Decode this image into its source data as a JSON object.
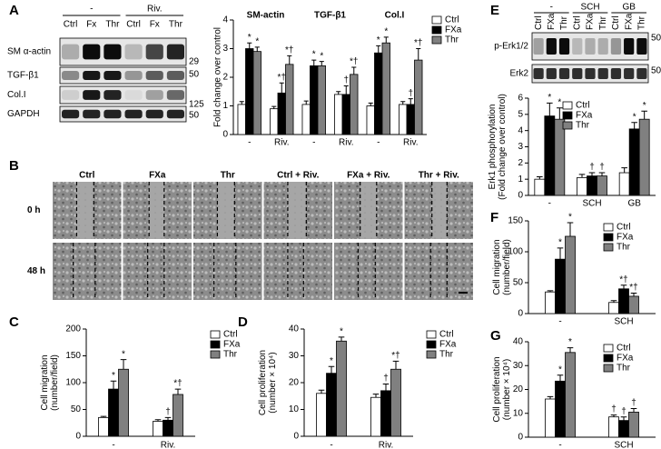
{
  "blot_a": {
    "panel": "A",
    "groups": [
      "-",
      "Riv."
    ],
    "lanes": [
      "Ctrl",
      "Fx",
      "Thr",
      "Ctrl",
      "Fx",
      "Thr"
    ],
    "rows": [
      "SM α-actin",
      "TGF-β1",
      "Col.I",
      "GAPDH"
    ],
    "markers": [
      "29",
      "50",
      "125",
      "50"
    ]
  },
  "micrographs": {
    "panel": "B",
    "columns": [
      "Ctrl",
      "FXa",
      "Thr",
      "Ctrl + Riv.",
      "FXa + Riv.",
      "Thr + Riv."
    ],
    "rows": [
      "0 h",
      "48 h"
    ]
  },
  "blot_e": {
    "panel": "E",
    "groups": [
      "-",
      "SCH",
      "GB"
    ],
    "lanes": [
      "Ctrl",
      "FXa",
      "Thr",
      "Ctrl",
      "FXa",
      "Thr",
      "Ctrl",
      "FXa",
      "Thr"
    ],
    "rows": [
      "p-Erk1/2",
      "Erk2"
    ],
    "markers": [
      "50",
      "50"
    ]
  },
  "chart_data": [
    {
      "type": "bar",
      "ylabel": [
        "Fold change over control"
      ],
      "groups": [
        "SM-actin",
        "TGF-β1",
        "Col.I"
      ],
      "categories": [
        "-",
        "Riv.",
        "-",
        "Riv.",
        "-",
        "Riv."
      ],
      "ylim": [
        0,
        4
      ],
      "yticks": [
        0,
        1,
        2,
        3,
        4
      ],
      "series": [
        {
          "name": "Ctrl",
          "color": "#ffffff",
          "values": [
            1.05,
            0.9,
            1.05,
            1.4,
            1.0,
            1.05
          ],
          "errors": [
            0.1,
            0.08,
            0.12,
            0.1,
            0.1,
            0.1
          ],
          "markers": [
            null,
            null,
            null,
            null,
            null,
            null
          ]
        },
        {
          "name": "FXa",
          "color": "#000000",
          "values": [
            3.0,
            1.45,
            2.4,
            1.4,
            2.85,
            1.05
          ],
          "errors": [
            0.2,
            0.35,
            0.2,
            0.3,
            0.25,
            0.2
          ],
          "markers": [
            "*",
            "*†",
            "*",
            "†",
            "*",
            "†"
          ]
        },
        {
          "name": "Thr",
          "color": "#808080",
          "values": [
            2.9,
            2.45,
            2.4,
            2.1,
            3.2,
            2.6
          ],
          "errors": [
            0.15,
            0.3,
            0.15,
            0.25,
            0.2,
            0.4
          ],
          "markers": [
            "*",
            "*†",
            "*",
            "*†",
            "*",
            "*†"
          ]
        }
      ]
    },
    {
      "type": "bar",
      "panel": "C",
      "ylabel": [
        "Cell migration",
        "(number/field)"
      ],
      "categories": [
        "-",
        "Riv."
      ],
      "ylim": [
        0,
        200
      ],
      "yticks": [
        0,
        50,
        100,
        150,
        200
      ],
      "series": [
        {
          "name": "Ctrl",
          "color": "#ffffff",
          "values": [
            35,
            28
          ],
          "errors": [
            2,
            3
          ],
          "markers": [
            null,
            null
          ]
        },
        {
          "name": "FXa",
          "color": "#000000",
          "values": [
            88,
            30
          ],
          "errors": [
            15,
            5
          ],
          "markers": [
            "*",
            "†"
          ]
        },
        {
          "name": "Thr",
          "color": "#808080",
          "values": [
            125,
            78
          ],
          "errors": [
            18,
            10
          ],
          "markers": [
            "*",
            "*†"
          ]
        }
      ]
    },
    {
      "type": "bar",
      "panel": "D",
      "ylabel": [
        "Cell proliferation",
        "(number × 10⁴)"
      ],
      "categories": [
        "-",
        "Riv."
      ],
      "ylim": [
        0,
        40
      ],
      "yticks": [
        0,
        10,
        20,
        30,
        40
      ],
      "series": [
        {
          "name": "Ctrl",
          "color": "#ffffff",
          "values": [
            16,
            14.5
          ],
          "errors": [
            1.2,
            1.2
          ],
          "markers": [
            null,
            null
          ]
        },
        {
          "name": "FXa",
          "color": "#000000",
          "values": [
            23.5,
            17
          ],
          "errors": [
            2.5,
            2.5
          ],
          "markers": [
            "*",
            "†"
          ]
        },
        {
          "name": "Thr",
          "color": "#808080",
          "values": [
            35.5,
            25
          ],
          "errors": [
            1.5,
            3
          ],
          "markers": [
            "*",
            "*†"
          ]
        }
      ]
    },
    {
      "type": "bar",
      "ylabel": [
        "Erk1 phosphorylation",
        "(Fold change over control)"
      ],
      "categories": [
        "-",
        "SCH",
        "GB"
      ],
      "ylim": [
        0,
        6
      ],
      "yticks": [
        0,
        1,
        2,
        3,
        4,
        5,
        6
      ],
      "series": [
        {
          "name": "Ctrl",
          "color": "#ffffff",
          "values": [
            1.0,
            1.1,
            1.4
          ],
          "errors": [
            0.15,
            0.2,
            0.3
          ],
          "markers": [
            null,
            null,
            null
          ]
        },
        {
          "name": "FXa",
          "color": "#000000",
          "values": [
            4.9,
            1.2,
            4.1
          ],
          "errors": [
            0.8,
            0.2,
            0.4
          ],
          "markers": [
            "*",
            "†",
            "*"
          ]
        },
        {
          "name": "Thr",
          "color": "#808080",
          "values": [
            4.7,
            1.2,
            4.7
          ],
          "errors": [
            0.7,
            0.2,
            0.5
          ],
          "markers": [
            "*",
            "†",
            "*"
          ]
        }
      ]
    },
    {
      "type": "bar",
      "panel": "F",
      "ylabel": [
        "Cell migration",
        "(number/field)"
      ],
      "categories": [
        "-",
        "SCH"
      ],
      "ylim": [
        0,
        150
      ],
      "yticks": [
        0,
        50,
        100,
        150
      ],
      "series": [
        {
          "name": "Ctrl",
          "color": "#ffffff",
          "values": [
            35,
            18
          ],
          "errors": [
            2,
            3
          ],
          "markers": [
            null,
            null
          ]
        },
        {
          "name": "FXa",
          "color": "#000000",
          "values": [
            88,
            40
          ],
          "errors": [
            18,
            6
          ],
          "markers": [
            "*",
            "*†"
          ]
        },
        {
          "name": "Thr",
          "color": "#808080",
          "values": [
            125,
            28
          ],
          "errors": [
            22,
            5
          ],
          "markers": [
            "*",
            "*†"
          ]
        }
      ]
    },
    {
      "type": "bar",
      "panel": "G",
      "ylabel": [
        "Cell proliferation",
        "(number × 10⁴)"
      ],
      "categories": [
        "-",
        "SCH"
      ],
      "ylim": [
        0,
        40
      ],
      "yticks": [
        0,
        10,
        20,
        30,
        40
      ],
      "series": [
        {
          "name": "Ctrl",
          "color": "#ffffff",
          "values": [
            16,
            8.5
          ],
          "errors": [
            1,
            0.8
          ],
          "markers": [
            null,
            "†"
          ]
        },
        {
          "name": "FXa",
          "color": "#000000",
          "values": [
            23.5,
            7
          ],
          "errors": [
            2.5,
            1.5
          ],
          "markers": [
            "*",
            "†"
          ]
        },
        {
          "name": "Thr",
          "color": "#808080",
          "values": [
            35.5,
            10.5
          ],
          "errors": [
            2,
            1.5
          ],
          "markers": [
            "*",
            "†"
          ]
        }
      ]
    }
  ]
}
